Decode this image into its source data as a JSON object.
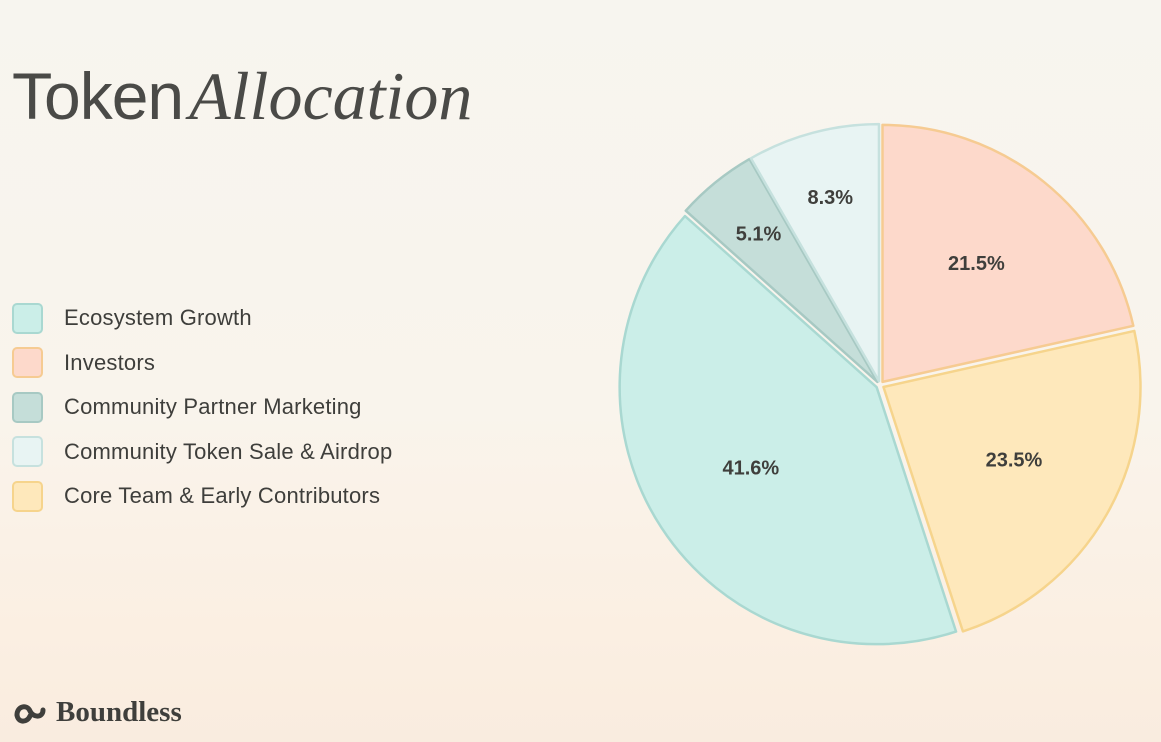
{
  "title": {
    "word1": "Token",
    "word2": "Allocation"
  },
  "brand": {
    "name": "Boundless",
    "icon": "boundless-logo-icon"
  },
  "chart_data": {
    "type": "pie",
    "title": "Token Allocation",
    "legend_position": "left",
    "slices": [
      {
        "label": "Investors",
        "value": 21.5,
        "display": "21.5%",
        "color": "#fdd9cb",
        "stroke": "#f6cb92"
      },
      {
        "label": "Core Team & Early Contributors",
        "value": 23.5,
        "display": "23.5%",
        "color": "#fee8bb",
        "stroke": "#f6d48c"
      },
      {
        "label": "Ecosystem Growth",
        "value": 41.6,
        "display": "41.6%",
        "color": "#cbeee8",
        "stroke": "#a9d8d1"
      },
      {
        "label": "Community Partner Marketing",
        "value": 5.1,
        "display": "5.1%",
        "color": "#c5ded9",
        "stroke": "#a7c9c3"
      },
      {
        "label": "Community Token Sale & Airdrop",
        "value": 8.3,
        "display": "8.3%",
        "color": "#e8f4f3",
        "stroke": "#c6e1de"
      }
    ],
    "legend": [
      {
        "label": "Ecosystem Growth",
        "color": "#cbeee8",
        "stroke": "#a9d8d1"
      },
      {
        "label": "Investors",
        "color": "#fdd9cb",
        "stroke": "#f6cb92"
      },
      {
        "label": "Community Partner Marketing",
        "color": "#c5ded9",
        "stroke": "#a7c9c3"
      },
      {
        "label": "Community Token Sale & Airdrop",
        "color": "#e8f4f3",
        "stroke": "#c6e1de"
      },
      {
        "label": "Core Team & Early Contributors",
        "color": "#fee8bb",
        "stroke": "#f6d48c"
      }
    ]
  }
}
